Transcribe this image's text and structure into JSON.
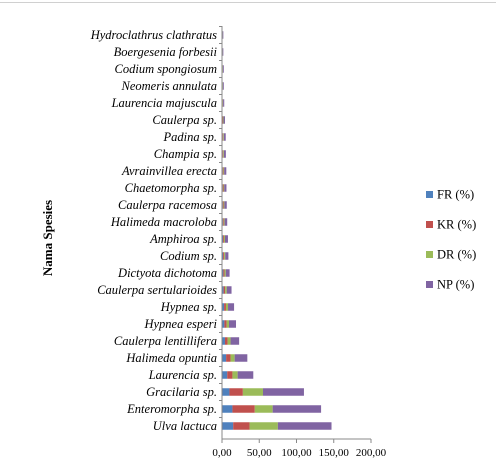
{
  "chart_data": {
    "type": "bar",
    "orientation": "horizontal",
    "stacked": true,
    "ylabel": "Nama Spesies",
    "xlabel": "",
    "xlim": [
      0,
      200
    ],
    "x_ticks": [
      0,
      50,
      100,
      150,
      200
    ],
    "x_tick_labels": [
      "0,00",
      "50,00",
      "100,00",
      "150,00",
      "200,00"
    ],
    "grid": false,
    "legend_position": "right",
    "categories": [
      "Hydroclathrus clathratus",
      "Boergesenia forbesii",
      "Codium spongiosum",
      "Neomeris annulata",
      "Laurencia majuscula",
      "Caulerpa sp.",
      "Padina sp.",
      "Champia sp.",
      "Avrainvillea erecta",
      "Chaetomorpha sp.",
      "Caulerpa racemosa",
      "Halimeda macroloba",
      "Amphiroa sp.",
      "Codium sp.",
      "Dictyota dichotoma",
      "Caulerpa sertularioides",
      "Hypnea sp.",
      "Hypnea esperi",
      "Caulerpa lentillifera",
      "Halimeda opuntia",
      "Laurencia sp.",
      "Gracilaria sp.",
      "Enteromorpha sp.",
      "Ulva lactuca"
    ],
    "series": [
      {
        "name": "FR (%)",
        "color": "#4f81bd",
        "values": [
          0.3,
          0.3,
          0.4,
          0.4,
          0.5,
          0.7,
          0.9,
          0.9,
          1,
          1,
          1.1,
          1.2,
          1.4,
          1.5,
          1.8,
          2.2,
          2.8,
          3.2,
          4,
          5.5,
          7,
          10,
          14,
          15
        ]
      },
      {
        "name": "KR (%)",
        "color": "#c0504d",
        "values": [
          0.3,
          0.3,
          0.4,
          0.4,
          0.5,
          0.6,
          0.7,
          0.8,
          0.9,
          1,
          1,
          1.1,
          1.2,
          1.3,
          1.5,
          2,
          2.5,
          3,
          3.5,
          6,
          7,
          18,
          30,
          22
        ]
      },
      {
        "name": "DR (%)",
        "color": "#9bbb59",
        "values": [
          0.3,
          0.3,
          0.4,
          0.4,
          0.5,
          0.7,
          0.9,
          0.9,
          1,
          1,
          1.1,
          1.2,
          1.4,
          1.5,
          1.8,
          2.2,
          2.8,
          3.2,
          4,
          5.5,
          7,
          27,
          24,
          38
        ]
      },
      {
        "name": "NP (%)",
        "color": "#8064a2",
        "values": [
          0.9,
          0.9,
          1.2,
          1.2,
          1.5,
          2,
          2.5,
          2.6,
          2.9,
          3,
          3.2,
          3.5,
          4,
          4.3,
          5.1,
          6.4,
          8.1,
          9.4,
          11.5,
          17,
          21,
          55,
          65,
          72
        ]
      }
    ]
  }
}
